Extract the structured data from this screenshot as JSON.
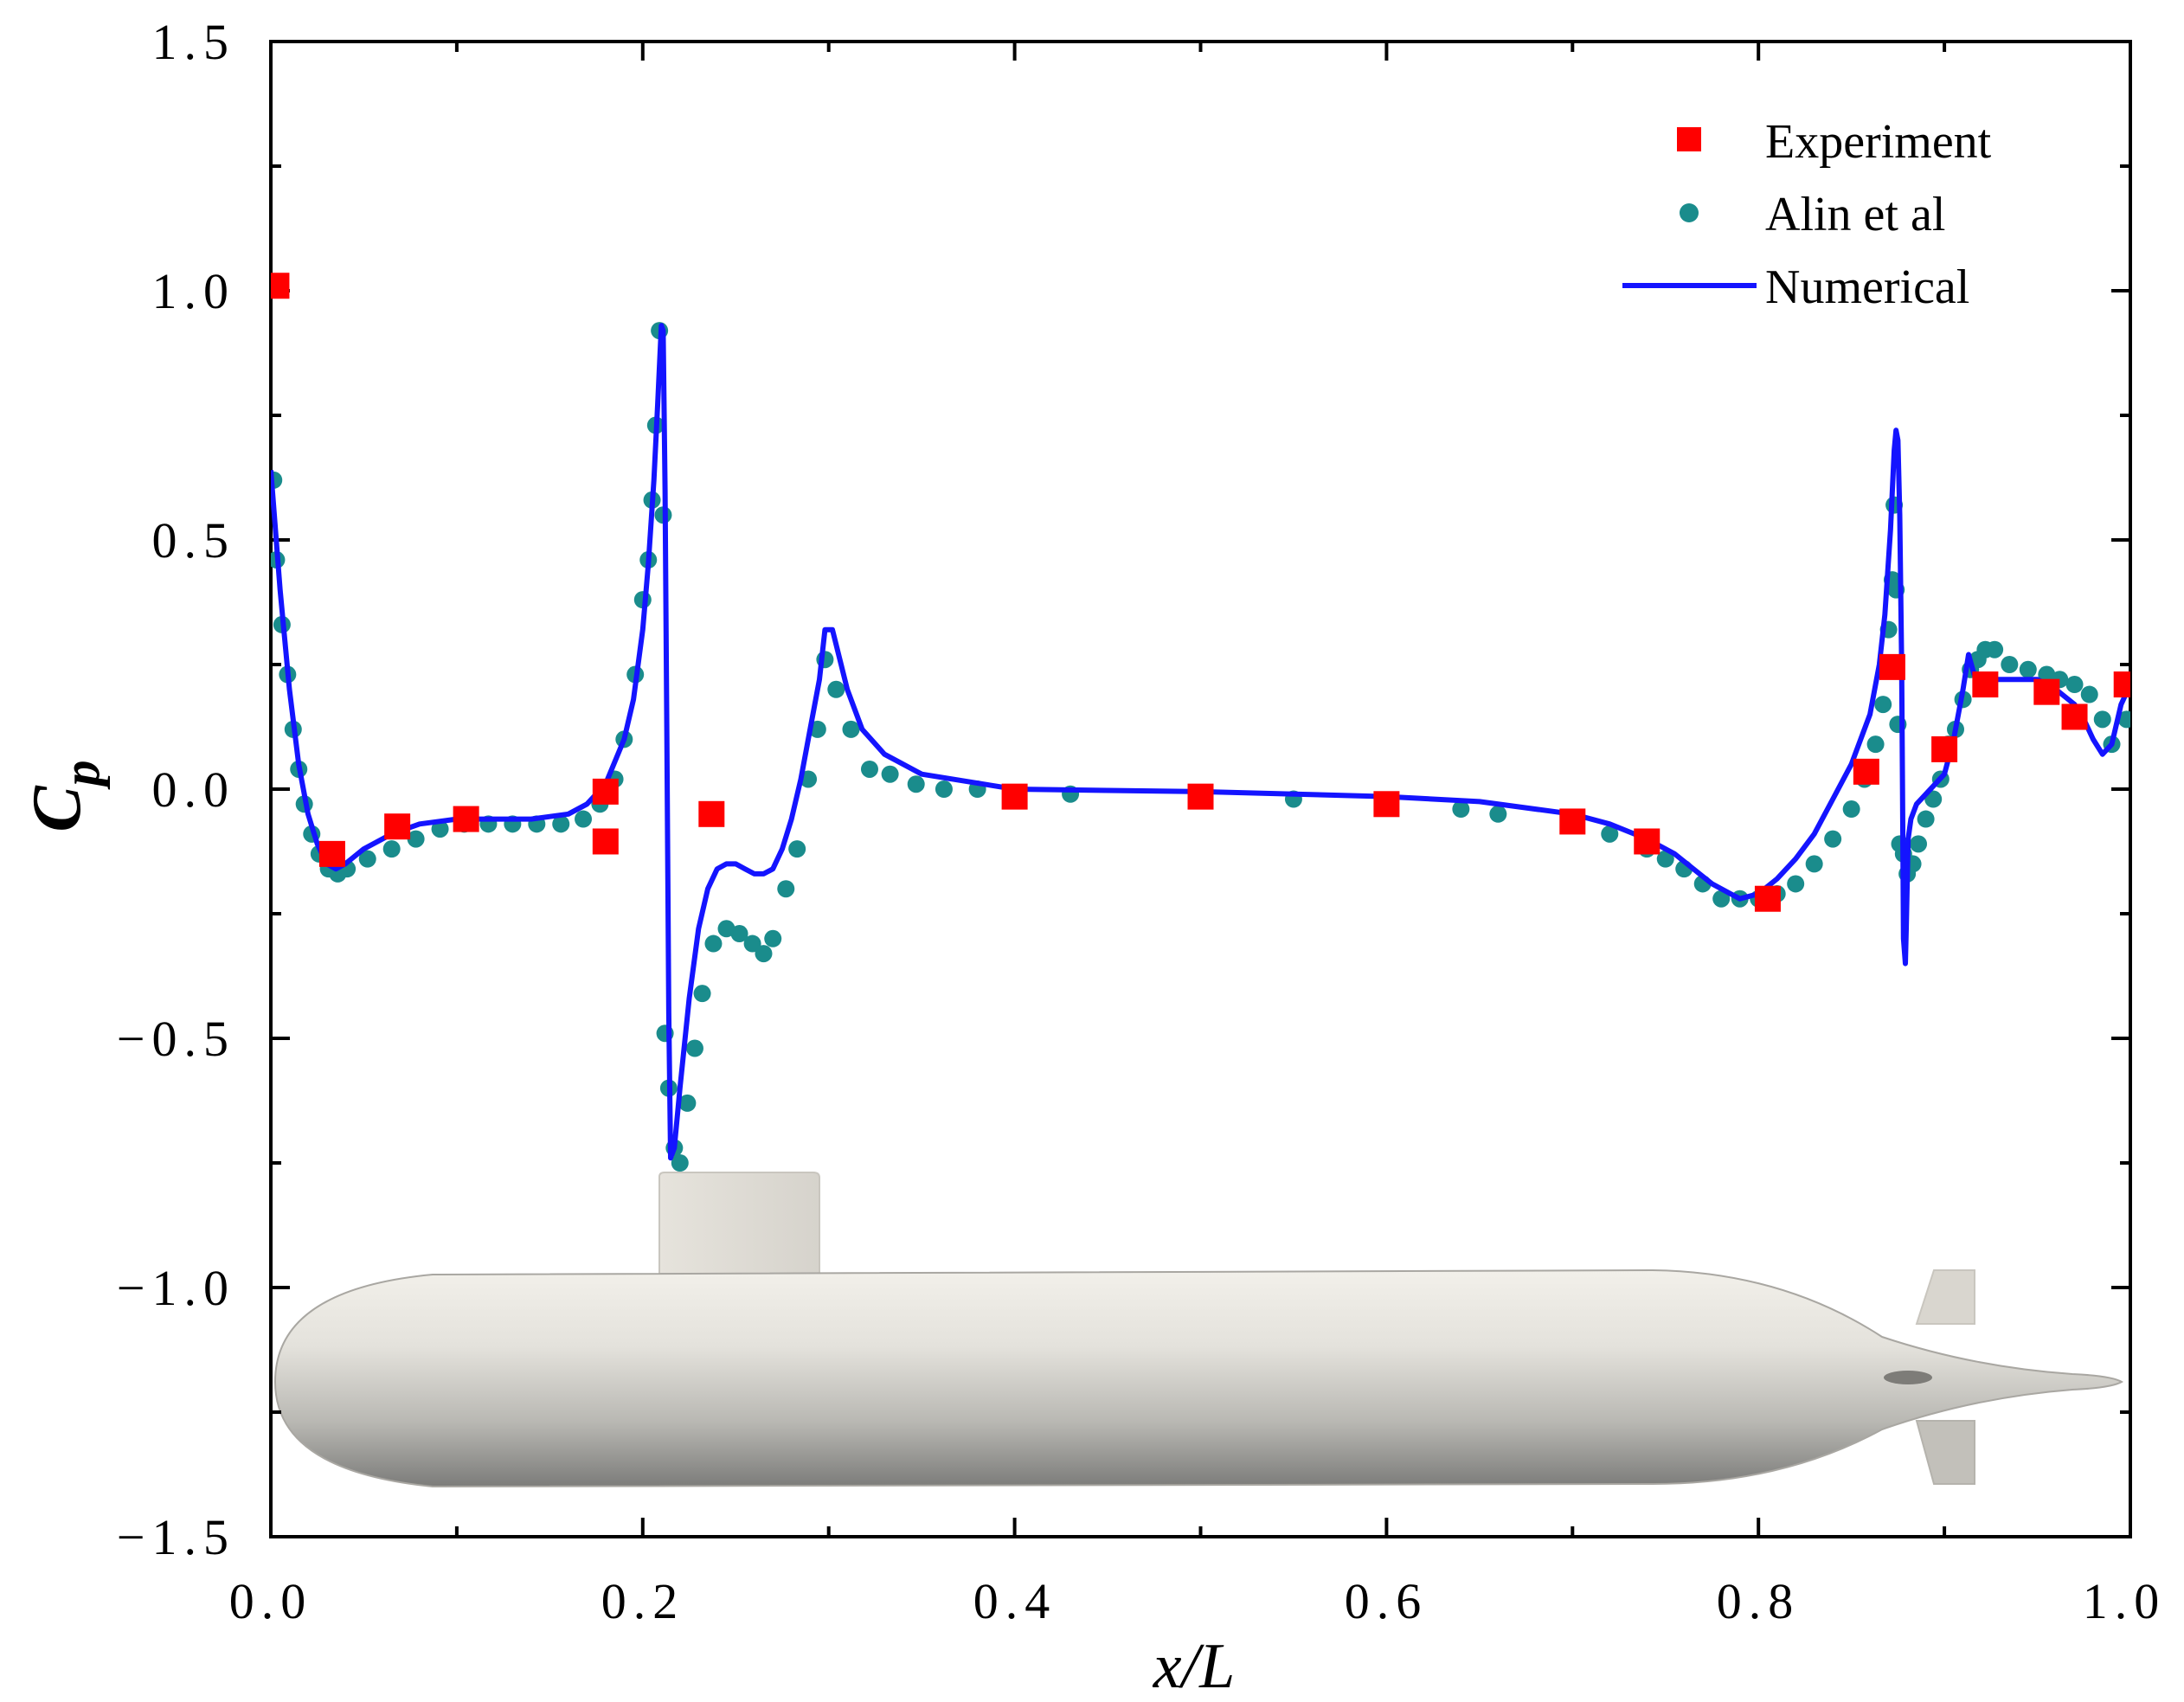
{
  "chart_data": {
    "type": "line",
    "title": "",
    "xlabel": "x/L",
    "ylabel": "C_p",
    "ylabel_main": "C",
    "ylabel_sub": "p",
    "xlim": [
      0.0,
      1.0
    ],
    "ylim": [
      -1.5,
      1.5
    ],
    "x_tick_labels": [
      "0.0",
      "0.2",
      "0.4",
      "0.6",
      "0.8",
      "1.0"
    ],
    "y_tick_labels": [
      "1.5",
      "1.0",
      "0.5",
      "0.0",
      "−0.5",
      "−1.0",
      "−1.5"
    ],
    "legend_position": "top-right",
    "colors": {
      "experiment": "#ff0000",
      "alin": "#1a8c8c",
      "numerical": "#1414ff"
    },
    "series": [
      {
        "name": "Experiment",
        "marker": "square",
        "x": [
          0.003,
          0.033,
          0.068,
          0.105,
          0.18,
          0.18,
          0.237,
          0.4,
          0.5,
          0.6,
          0.7,
          0.74,
          0.805,
          0.858,
          0.872,
          0.9,
          0.922,
          0.955,
          0.97,
          0.998
        ],
        "y": [
          1.01,
          -0.13,
          -0.075,
          -0.06,
          -0.005,
          -0.105,
          -0.05,
          -0.015,
          -0.015,
          -0.03,
          -0.065,
          -0.105,
          -0.22,
          0.035,
          0.245,
          0.08,
          0.21,
          0.195,
          0.145,
          0.21
        ]
      },
      {
        "name": "Alin et al",
        "marker": "circle",
        "x": [
          0.0015,
          0.003,
          0.006,
          0.009,
          0.012,
          0.015,
          0.018,
          0.022,
          0.026,
          0.031,
          0.036,
          0.041,
          0.052,
          0.065,
          0.078,
          0.091,
          0.104,
          0.117,
          0.13,
          0.143,
          0.156,
          0.168,
          0.177,
          0.185,
          0.19,
          0.196,
          0.2,
          0.203,
          0.205,
          0.207,
          0.209,
          0.211,
          0.212,
          0.214,
          0.217,
          0.22,
          0.224,
          0.228,
          0.232,
          0.238,
          0.245,
          0.252,
          0.259,
          0.265,
          0.27,
          0.277,
          0.283,
          0.289,
          0.294,
          0.298,
          0.304,
          0.312,
          0.322,
          0.333,
          0.347,
          0.362,
          0.38,
          0.4,
          0.43,
          0.5,
          0.55,
          0.6,
          0.64,
          0.66,
          0.7,
          0.72,
          0.74,
          0.75,
          0.76,
          0.77,
          0.78,
          0.79,
          0.8,
          0.81,
          0.82,
          0.83,
          0.84,
          0.85,
          0.857,
          0.863,
          0.867,
          0.87,
          0.872,
          0.873,
          0.874,
          0.875,
          0.876,
          0.878,
          0.88,
          0.883,
          0.886,
          0.89,
          0.894,
          0.898,
          0.902,
          0.906,
          0.91,
          0.914,
          0.918,
          0.922,
          0.927,
          0.935,
          0.945,
          0.955,
          0.962,
          0.97,
          0.978,
          0.985,
          0.99,
          0.998
        ],
        "y": [
          0.62,
          0.46,
          0.33,
          0.23,
          0.12,
          0.04,
          -0.03,
          -0.09,
          -0.13,
          -0.16,
          -0.17,
          -0.16,
          -0.14,
          -0.12,
          -0.1,
          -0.08,
          -0.07,
          -0.07,
          -0.07,
          -0.07,
          -0.07,
          -0.06,
          -0.03,
          0.02,
          0.1,
          0.23,
          0.38,
          0.46,
          0.58,
          0.73,
          0.92,
          0.55,
          -0.49,
          -0.6,
          -0.72,
          -0.75,
          -0.63,
          -0.52,
          -0.41,
          -0.31,
          -0.28,
          -0.29,
          -0.31,
          -0.33,
          -0.3,
          -0.2,
          -0.12,
          0.02,
          0.12,
          0.26,
          0.2,
          0.12,
          0.04,
          0.03,
          0.01,
          0.0,
          0.0,
          -0.01,
          -0.01,
          -0.02,
          -0.02,
          -0.03,
          -0.04,
          -0.05,
          -0.07,
          -0.09,
          -0.12,
          -0.14,
          -0.16,
          -0.19,
          -0.22,
          -0.22,
          -0.22,
          -0.21,
          -0.19,
          -0.15,
          -0.1,
          -0.04,
          0.02,
          0.09,
          0.17,
          0.32,
          0.42,
          0.57,
          0.4,
          0.13,
          -0.11,
          -0.13,
          -0.17,
          -0.15,
          -0.11,
          -0.06,
          -0.02,
          0.02,
          0.09,
          0.12,
          0.18,
          0.24,
          0.26,
          0.28,
          0.28,
          0.25,
          0.24,
          0.23,
          0.22,
          0.21,
          0.19,
          0.14,
          0.09,
          0.14
        ]
      },
      {
        "name": "Numerical",
        "marker": "line",
        "x": [
          0.0,
          0.005,
          0.01,
          0.015,
          0.02,
          0.025,
          0.03,
          0.035,
          0.04,
          0.05,
          0.065,
          0.08,
          0.1,
          0.12,
          0.14,
          0.16,
          0.17,
          0.18,
          0.19,
          0.195,
          0.2,
          0.203,
          0.206,
          0.208,
          0.21,
          0.211,
          0.212,
          0.213,
          0.214,
          0.215,
          0.217,
          0.22,
          0.225,
          0.23,
          0.235,
          0.24,
          0.245,
          0.25,
          0.255,
          0.26,
          0.265,
          0.27,
          0.275,
          0.28,
          0.285,
          0.29,
          0.295,
          0.298,
          0.302,
          0.306,
          0.31,
          0.318,
          0.33,
          0.35,
          0.4,
          0.5,
          0.6,
          0.65,
          0.7,
          0.72,
          0.74,
          0.755,
          0.765,
          0.775,
          0.785,
          0.79,
          0.8,
          0.81,
          0.82,
          0.83,
          0.84,
          0.85,
          0.86,
          0.865,
          0.868,
          0.871,
          0.873,
          0.874,
          0.875,
          0.876,
          0.877,
          0.8775,
          0.878,
          0.879,
          0.8795,
          0.8805,
          0.882,
          0.885,
          0.89,
          0.895,
          0.9,
          0.905,
          0.91,
          0.913,
          0.916,
          0.92,
          0.93,
          0.95,
          0.96,
          0.97,
          0.975,
          0.98,
          0.985,
          0.99,
          0.995,
          1.0
        ],
        "y": [
          0.64,
          0.4,
          0.2,
          0.05,
          -0.05,
          -0.11,
          -0.15,
          -0.16,
          -0.15,
          -0.12,
          -0.09,
          -0.07,
          -0.06,
          -0.06,
          -0.06,
          -0.05,
          -0.03,
          0.01,
          0.1,
          0.18,
          0.32,
          0.45,
          0.62,
          0.77,
          0.93,
          0.92,
          0.6,
          0.1,
          -0.45,
          -0.74,
          -0.72,
          -0.6,
          -0.42,
          -0.28,
          -0.2,
          -0.16,
          -0.15,
          -0.15,
          -0.16,
          -0.17,
          -0.17,
          -0.16,
          -0.12,
          -0.06,
          0.02,
          0.12,
          0.22,
          0.32,
          0.32,
          0.26,
          0.2,
          0.12,
          0.07,
          0.03,
          0.0,
          -0.005,
          -0.015,
          -0.025,
          -0.05,
          -0.07,
          -0.1,
          -0.13,
          -0.16,
          -0.19,
          -0.21,
          -0.22,
          -0.21,
          -0.18,
          -0.14,
          -0.09,
          -0.02,
          0.05,
          0.15,
          0.25,
          0.35,
          0.52,
          0.68,
          0.72,
          0.7,
          0.55,
          0.25,
          0.0,
          -0.3,
          -0.35,
          -0.28,
          -0.1,
          -0.06,
          -0.03,
          -0.01,
          0.01,
          0.03,
          0.1,
          0.2,
          0.27,
          0.23,
          0.22,
          0.22,
          0.22,
          0.2,
          0.17,
          0.14,
          0.1,
          0.07,
          0.09,
          0.17,
          0.21
        ]
      }
    ]
  }
}
